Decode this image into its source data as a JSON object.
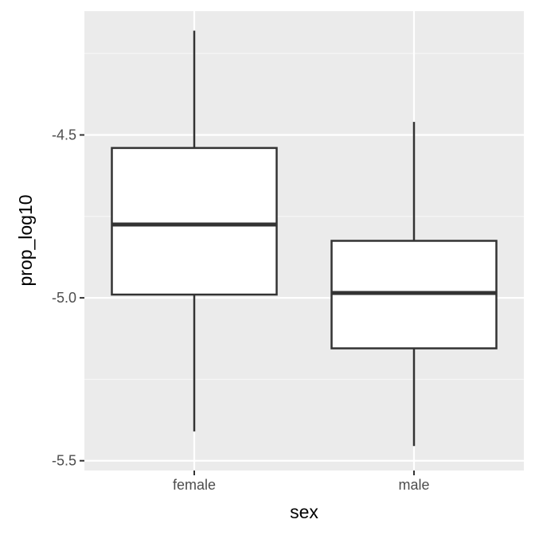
{
  "chart_data": {
    "type": "boxplot",
    "title": "",
    "xlabel": "sex",
    "ylabel": "prop_log10",
    "categories": [
      "female",
      "male"
    ],
    "boxes": [
      {
        "category": "female",
        "whisker_low": -5.41,
        "q1": -4.99,
        "median": -4.775,
        "q3": -4.54,
        "whisker_high": -4.18
      },
      {
        "category": "male",
        "whisker_low": -5.455,
        "q1": -5.155,
        "median": -4.985,
        "q3": -4.825,
        "whisker_high": -4.46
      }
    ],
    "y_ticks": [
      -5.5,
      -5.0,
      -4.5
    ],
    "y_tick_labels": [
      "-5.5",
      "-5.0",
      "-4.5"
    ],
    "ylim": [
      -5.53,
      -4.12
    ],
    "grid": true,
    "colors": {
      "panel_background": "#ebebeb",
      "grid_major": "#ffffff",
      "grid_minor": "#f7f7f7",
      "box_fill": "#ffffff",
      "box_stroke": "#333333"
    }
  }
}
